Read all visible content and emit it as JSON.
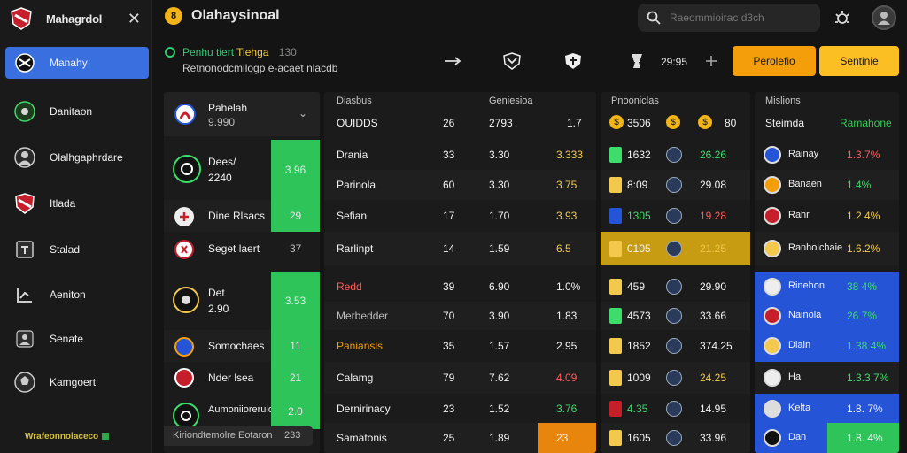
{
  "sidebar": {
    "brand": "Mahagrdol",
    "items": [
      {
        "label": "Manahy",
        "icon": "shield-logo-icon",
        "active": true
      },
      {
        "label": "Danitaon",
        "icon": "football-icon"
      },
      {
        "label": "Olalhgaphrdare",
        "icon": "player-icon"
      },
      {
        "label": "Itlada",
        "icon": "club-crest-icon"
      },
      {
        "label": "Stalad",
        "icon": "table-icon"
      },
      {
        "label": "Aeniton",
        "icon": "chart-icon"
      },
      {
        "label": "Senate",
        "icon": "person-icon"
      },
      {
        "label": "Kamgoert",
        "icon": "ball-icon"
      }
    ],
    "footer": "Wrafeonnolaceco"
  },
  "header": {
    "title": "Olahaysinoal",
    "coin": "8",
    "search_placeholder": "Raeommioirac d3ch",
    "live_title_green": "Penhu tiert",
    "live_title_yellow": "Tiehga",
    "live_title_grey": "130",
    "live_sub": "Retnonodcmilogp e-acaet nlacdb",
    "strip_score": "29:95",
    "btn_orange": "Perolefio",
    "btn_yellow": "Sentinie"
  },
  "panel1": {
    "header_name": "Pahelah",
    "header_sub": "9.990",
    "rows": [
      {
        "name": "Dees/",
        "sub": "2240",
        "value": "3.96",
        "big": true
      },
      {
        "name": "Dine Rlsacs",
        "value": "29"
      },
      {
        "name": "Seget laert",
        "value": "37"
      },
      {
        "name": "Det",
        "sub": "2.90",
        "value": "3.53",
        "big": true
      },
      {
        "name": "Somochaes",
        "value": "11"
      },
      {
        "name": "Nder lsea",
        "value": "21"
      },
      {
        "name": "Aumoniiorerulo",
        "value": "2.0"
      }
    ],
    "footer_label": "Kiriondtemolre Eotaron",
    "footer_value": "233"
  },
  "panel2": {
    "h1": "Diasbus",
    "h2": "Geniesioa",
    "h_row_name": "OUIDDS",
    "h_row_a": "26",
    "h_row_b": "2793",
    "h_row_c": "1.7",
    "rows": [
      {
        "name": "Drania",
        "a": "33",
        "b": "3.30",
        "c": "3.333"
      },
      {
        "name": "Parinola",
        "a": "60",
        "b": "3.30",
        "c": "3.75"
      },
      {
        "name": "Sefian",
        "a": "17",
        "b": "1.70",
        "c": "3.93"
      },
      {
        "name": "Rarlinpt",
        "a": "14",
        "b": "1.59",
        "c": "6.5"
      },
      {
        "name": "Redd",
        "a": "39",
        "b": "6.90",
        "c": "1.0%"
      },
      {
        "name": "Merbedder",
        "a": "70",
        "b": "3.90",
        "c": "1.83"
      },
      {
        "name": "Paniansls",
        "a": "35",
        "b": "1.57",
        "c": "2.95"
      },
      {
        "name": "Calamg",
        "a": "79",
        "b": "7.62",
        "c": "4.09"
      },
      {
        "name": "Dernirinacy",
        "a": "23",
        "b": "1.52",
        "c": "3.76"
      },
      {
        "name": "Samatonis",
        "a": "25",
        "b": "1.89",
        "c": "23"
      }
    ]
  },
  "panel3": {
    "h1": "Pnooniclas",
    "h_a": "3506",
    "h_b": "80",
    "rows": [
      {
        "a": "1632",
        "b": "26.26"
      },
      {
        "a": "8:09",
        "b": "29.08"
      },
      {
        "a": "1305",
        "b": "19.28"
      },
      {
        "a": "0105",
        "b": "21.25"
      },
      {
        "a": "459",
        "b": "29.90"
      },
      {
        "a": "4573",
        "b": "33.66"
      },
      {
        "a": "1852",
        "b": "374.25"
      },
      {
        "a": "1009",
        "b": "24.25"
      },
      {
        "a": "4.35",
        "b": "14.95"
      },
      {
        "a": "1605",
        "b": "33.96"
      }
    ]
  },
  "panel4": {
    "h1": "Mislions",
    "h_name": "Steimda",
    "h_value": "Ramahone",
    "rows": [
      {
        "name": "Rainay",
        "v": "1.3.7%"
      },
      {
        "name": "Banaen",
        "v": "1.4%"
      },
      {
        "name": "Rahr",
        "v": "1.2 4%"
      },
      {
        "name": "Ranholchaie",
        "v": "1.6.2%"
      },
      {
        "name": "Rinehon",
        "v": "38 4%"
      },
      {
        "name": "Nainola",
        "v": "26 7%"
      },
      {
        "name": "Diain",
        "v": "1.38 4%"
      },
      {
        "name": "Ha",
        "v": "1.3.3 7%"
      },
      {
        "name": "Kelta",
        "v": "1.8. 7%"
      },
      {
        "name": "Dan",
        "v": "1.8. 4%"
      }
    ]
  }
}
